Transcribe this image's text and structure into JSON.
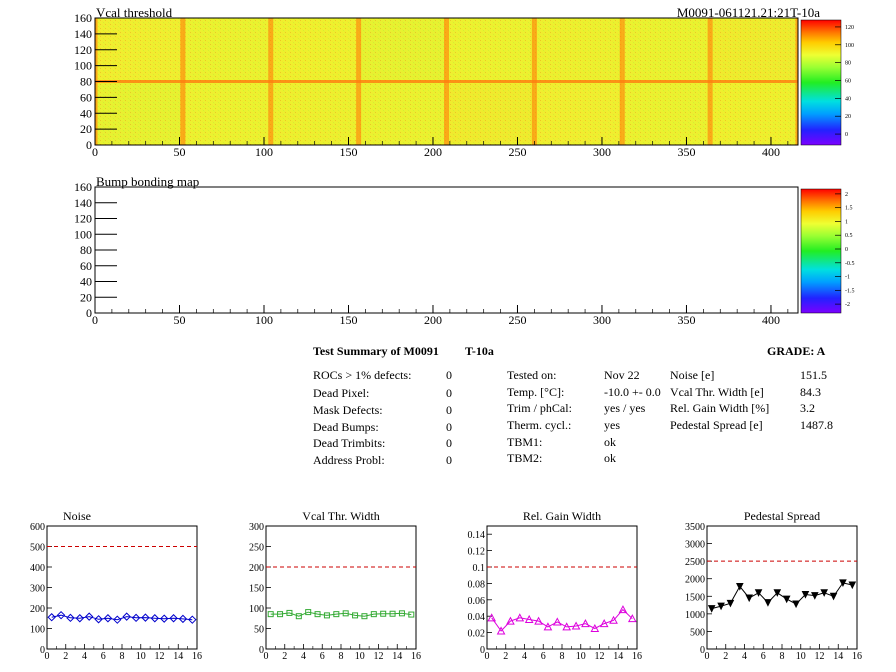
{
  "maps": [
    {
      "id": "vcal",
      "title": "Vcal threshold",
      "module_label": "M0091-061121.21:21T-10a",
      "x_ticks": [
        "0",
        "50",
        "100",
        "150",
        "200",
        "250",
        "300",
        "350",
        "400"
      ],
      "y_ticks": [
        "0",
        "20",
        "40",
        "60",
        "80",
        "100",
        "120",
        "140",
        "160"
      ],
      "palette_labels": [
        "0",
        "20",
        "40",
        "60",
        "80",
        "100",
        "120"
      ],
      "filled": true
    },
    {
      "id": "bump",
      "title": "Bump bonding map",
      "module_label": "",
      "x_ticks": [
        "0",
        "50",
        "100",
        "150",
        "200",
        "250",
        "300",
        "350",
        "400"
      ],
      "y_ticks": [
        "0",
        "20",
        "40",
        "60",
        "80",
        "100",
        "120",
        "140",
        "160"
      ],
      "palette_labels": [
        "-2",
        "-1.5",
        "-1",
        "-0.5",
        "0",
        "0.5",
        "1",
        "1.5",
        "2"
      ],
      "filled": false
    }
  ],
  "summary": {
    "title": "Test Summary of M0091",
    "tag": "T-10a",
    "grade": "GRADE:  A",
    "defects": [
      {
        "label": "ROCs > 1% defects:",
        "value": "0"
      },
      {
        "label": "Dead Pixel:",
        "value": "0"
      },
      {
        "label": "Mask Defects:",
        "value": "0"
      },
      {
        "label": "Dead Bumps:",
        "value": "0"
      },
      {
        "label": "Dead Trimbits:",
        "value": "0"
      },
      {
        "label": "Address Probl:",
        "value": "0"
      }
    ],
    "conditions": [
      {
        "label": "Tested on:",
        "value": "Nov 22"
      },
      {
        "label": "Temp. [°C]:",
        "value": "-10.0 +- 0.0"
      },
      {
        "label": "Trim / phCal:",
        "value": "yes / yes"
      },
      {
        "label": "Therm. cycl.:",
        "value": "yes"
      },
      {
        "label": "TBM1:",
        "value": "ok"
      },
      {
        "label": "TBM2:",
        "value": "ok"
      }
    ],
    "results": [
      {
        "label": "Noise [e]",
        "value": "151.5"
      },
      {
        "label": "Vcal Thr. Width [e]",
        "value": "84.3"
      },
      {
        "label": "Rel. Gain Width [%]",
        "value": "3.2"
      },
      {
        "label": "Pedestal Spread [e]",
        "value": "1487.8"
      }
    ]
  },
  "colors": {
    "noise": "#0000cc",
    "vcal_width": "#33aa33",
    "gain_width": "#dd00dd",
    "pedestal": "#000000",
    "limit_line": "#cc0000"
  },
  "chart_data": [
    {
      "type": "line",
      "title": "Noise",
      "x": [
        0,
        1,
        2,
        3,
        4,
        5,
        6,
        7,
        8,
        9,
        10,
        11,
        12,
        13,
        14,
        15
      ],
      "series": [
        {
          "values": [
            155,
            165,
            152,
            150,
            158,
            145,
            150,
            143,
            158,
            152,
            153,
            150,
            148,
            150,
            147,
            143
          ]
        }
      ],
      "limit": 500,
      "xlim": [
        0,
        16
      ],
      "ylim": [
        0,
        600
      ],
      "x_ticks": [
        "0",
        "2",
        "4",
        "6",
        "8",
        "10",
        "12",
        "14",
        "16"
      ],
      "y_ticks": [
        "0",
        "100",
        "200",
        "300",
        "400",
        "500",
        "600"
      ],
      "marker": "diamond"
    },
    {
      "type": "line",
      "title": "Vcal Thr. Width",
      "x": [
        0,
        1,
        2,
        3,
        4,
        5,
        6,
        7,
        8,
        9,
        10,
        11,
        12,
        13,
        14,
        15
      ],
      "series": [
        {
          "values": [
            85,
            85,
            88,
            80,
            90,
            85,
            82,
            85,
            87,
            82,
            80,
            85,
            86,
            86,
            87,
            84
          ]
        }
      ],
      "limit": 200,
      "xlim": [
        0,
        16
      ],
      "ylim": [
        0,
        300
      ],
      "x_ticks": [
        "0",
        "2",
        "4",
        "6",
        "8",
        "10",
        "12",
        "14",
        "16"
      ],
      "y_ticks": [
        "0",
        "50",
        "100",
        "150",
        "200",
        "250",
        "300"
      ],
      "marker": "square"
    },
    {
      "type": "line",
      "title": "Rel. Gain Width",
      "x": [
        0,
        1,
        2,
        3,
        4,
        5,
        6,
        7,
        8,
        9,
        10,
        11,
        12,
        13,
        14,
        15
      ],
      "series": [
        {
          "values": [
            0.038,
            0.022,
            0.034,
            0.038,
            0.036,
            0.034,
            0.027,
            0.033,
            0.027,
            0.028,
            0.031,
            0.025,
            0.031,
            0.035,
            0.048,
            0.037
          ]
        }
      ],
      "limit": 0.1,
      "xlim": [
        0,
        16
      ],
      "ylim": [
        0,
        0.15
      ],
      "x_ticks": [
        "0",
        "2",
        "4",
        "6",
        "8",
        "10",
        "12",
        "14",
        "16"
      ],
      "y_ticks": [
        "0",
        "0.02",
        "0.04",
        "0.06",
        "0.08",
        "0.1",
        "0.12",
        "0.14"
      ],
      "marker": "triangle"
    },
    {
      "type": "line",
      "title": "Pedestal Spread",
      "x": [
        0,
        1,
        2,
        3,
        4,
        5,
        6,
        7,
        8,
        9,
        10,
        11,
        12,
        13,
        14,
        15
      ],
      "series": [
        {
          "values": [
            1150,
            1220,
            1300,
            1780,
            1450,
            1600,
            1320,
            1600,
            1420,
            1280,
            1550,
            1520,
            1600,
            1500,
            1880,
            1820
          ]
        }
      ],
      "limit": 2500,
      "xlim": [
        0,
        16
      ],
      "ylim": [
        0,
        3500
      ],
      "x_ticks": [
        "0",
        "2",
        "4",
        "6",
        "8",
        "10",
        "12",
        "14",
        "16"
      ],
      "y_ticks": [
        "0",
        "500",
        "1000",
        "1500",
        "2000",
        "2500",
        "3000",
        "3500"
      ],
      "marker": "tri-down"
    }
  ]
}
